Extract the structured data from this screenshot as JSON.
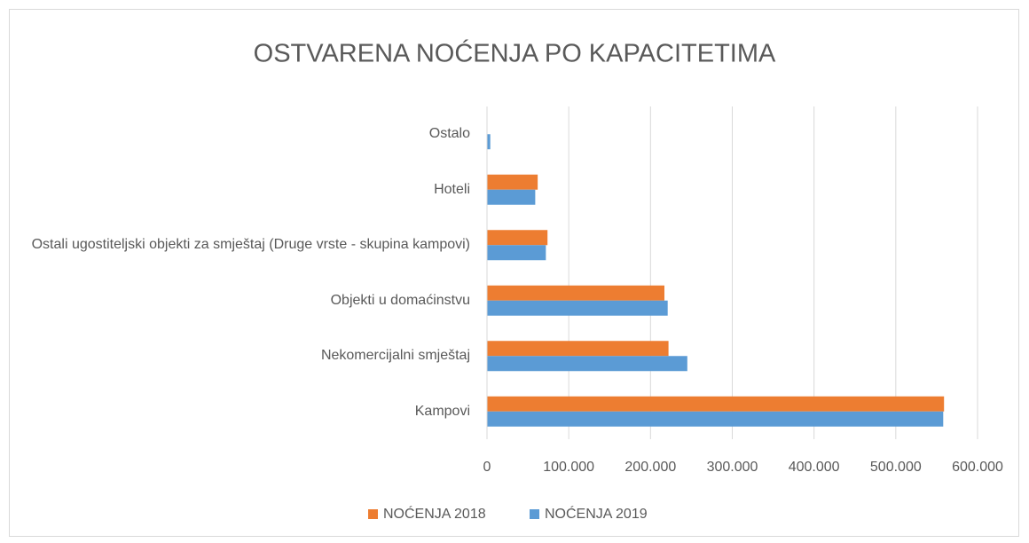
{
  "chart_data": {
    "type": "bar",
    "orientation": "horizontal",
    "title": "OSTVARENA NOĆENJA PO KAPACITETIMA",
    "categories": [
      "Ostalo",
      "Hoteli",
      "Ostali ugostiteljski objekti za smještaj (Druge vrste - skupina kampovi)",
      "Objekti u domaćinstvu",
      "Nekomercijalni smještaj",
      "Kampovi"
    ],
    "series": [
      {
        "name": "NOĆENJA 2018",
        "color": "#ed7d31",
        "values": [
          0,
          62000,
          74000,
          217000,
          222000,
          559000
        ]
      },
      {
        "name": "NOĆENJA 2019",
        "color": "#5b9bd5",
        "values": [
          4000,
          59000,
          72000,
          221000,
          245000,
          558000
        ]
      }
    ],
    "xlim": [
      0,
      600000
    ],
    "xticks": [
      0,
      {
        "value": 100000,
        "label": "100.000"
      },
      {
        "value": 200000,
        "label": "200.000"
      },
      {
        "value": 300000,
        "label": "300.000"
      },
      {
        "value": 400000,
        "label": "400.000"
      },
      {
        "value": 500000,
        "label": "500.000"
      },
      {
        "value": 600000,
        "label": "600.000"
      }
    ],
    "grid": true,
    "legend": "bottom"
  }
}
